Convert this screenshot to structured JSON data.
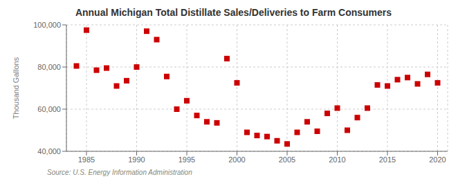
{
  "chart_data": {
    "type": "scatter",
    "title": "Annual Michigan Total Distillate Sales/Deliveries to Farm Consumers",
    "ylabel": "Thousand Gallons",
    "annotations": [
      "Source: U.S. Energy Information Administration"
    ],
    "x": [
      1984,
      1985,
      1986,
      1987,
      1988,
      1989,
      1990,
      1991,
      1992,
      1993,
      1994,
      1995,
      1996,
      1997,
      1998,
      1999,
      2000,
      2001,
      2002,
      2003,
      2004,
      2005,
      2006,
      2007,
      2008,
      2009,
      2010,
      2011,
      2012,
      2013,
      2014,
      2015,
      2016,
      2017,
      2018,
      2019,
      2020
    ],
    "values": [
      80500,
      97500,
      78500,
      79500,
      71000,
      73500,
      80000,
      97000,
      93000,
      75500,
      60000,
      64000,
      57000,
      54000,
      53500,
      84000,
      72500,
      49000,
      47500,
      47000,
      45000,
      43500,
      49000,
      54000,
      49500,
      58000,
      60500,
      50000,
      56000,
      60500,
      71500,
      71000,
      74000,
      75000,
      72000,
      76500,
      72500
    ],
    "color": "#cc0000",
    "marker": "square",
    "xlim": [
      1983,
      2021
    ],
    "ylim": [
      40000,
      100000
    ],
    "xticks": [
      1985,
      1990,
      1995,
      2000,
      2005,
      2010,
      2015,
      2020
    ],
    "yticks": [
      {
        "value": 40000,
        "label": "40,000"
      },
      {
        "value": 60000,
        "label": "60,000"
      },
      {
        "value": 80000,
        "label": "80,000"
      },
      {
        "value": 100000,
        "label": "100,000"
      }
    ],
    "grid": true
  }
}
